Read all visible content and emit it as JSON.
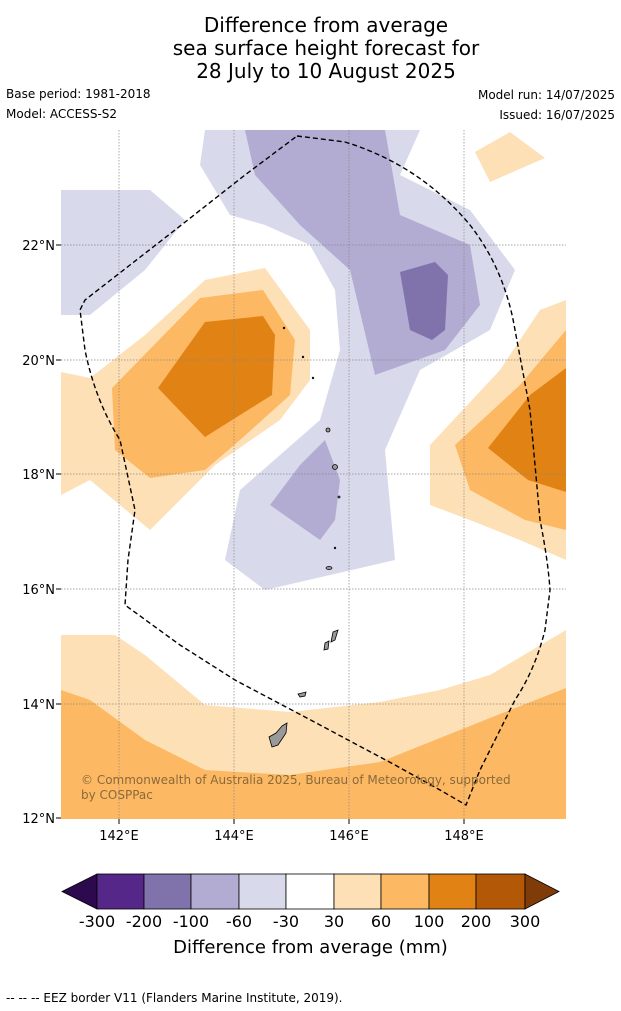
{
  "title": {
    "line1": "Difference from average",
    "line2": "sea surface height forecast for",
    "line3": "28 July to 10 August 2025"
  },
  "meta": {
    "base_period": "Base period: 1981-2018",
    "model": "Model: ACCESS-S2",
    "model_run": "Model run: 14/07/2025",
    "issued": "Issued: 16/07/2025"
  },
  "map": {
    "lat_labels": [
      "22°N",
      "20°N",
      "18°N",
      "16°N",
      "14°N",
      "12°N"
    ],
    "lon_labels": [
      "142°E",
      "144°E",
      "146°E",
      "148°E"
    ],
    "copyright": "© Commonwealth of Australia 2025, Bureau of Meteorology, supported by COSPPac",
    "colors": {
      "p300": "#2d0a4e",
      "p200": "#542788",
      "p100": "#8073ac",
      "p60": "#b2abd2",
      "p30": "#d8daeb",
      "zero": "#ffffff",
      "o30": "#fee0b6",
      "o60": "#fdb863",
      "o100": "#e08214",
      "o200": "#b35806",
      "o300": "#7f3b08"
    }
  },
  "colorbar": {
    "ticks": [
      "-300",
      "-200",
      "-100",
      "-60",
      "-30",
      "30",
      "60",
      "100",
      "200",
      "300"
    ],
    "title": "Difference from average (mm)"
  },
  "footnote": "--  --  -- EEZ border V11 (Flanders Marine Institute, 2019)."
}
